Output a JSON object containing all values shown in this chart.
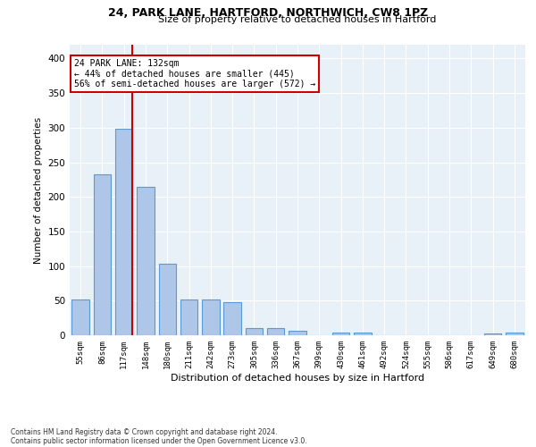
{
  "title1": "24, PARK LANE, HARTFORD, NORTHWICH, CW8 1PZ",
  "title2": "Size of property relative to detached houses in Hartford",
  "xlabel": "Distribution of detached houses by size in Hartford",
  "ylabel": "Number of detached properties",
  "categories": [
    "55sqm",
    "86sqm",
    "117sqm",
    "148sqm",
    "180sqm",
    "211sqm",
    "242sqm",
    "273sqm",
    "305sqm",
    "336sqm",
    "367sqm",
    "399sqm",
    "430sqm",
    "461sqm",
    "492sqm",
    "524sqm",
    "555sqm",
    "586sqm",
    "617sqm",
    "649sqm",
    "680sqm"
  ],
  "values": [
    52,
    232,
    299,
    215,
    103,
    52,
    52,
    48,
    10,
    10,
    6,
    0,
    4,
    4,
    0,
    0,
    0,
    0,
    0,
    3,
    4
  ],
  "bar_color": "#aec6e8",
  "bar_edgecolor": "#5b9bd5",
  "redline_color": "#cc0000",
  "annotation_text": "24 PARK LANE: 132sqm\n← 44% of detached houses are smaller (445)\n56% of semi-detached houses are larger (572) →",
  "annotation_box_color": "#ffffff",
  "annotation_box_edgecolor": "#cc0000",
  "ylim": [
    0,
    420
  ],
  "yticks": [
    0,
    50,
    100,
    150,
    200,
    250,
    300,
    350,
    400
  ],
  "background_color": "#e8f0f8",
  "grid_color": "#ffffff",
  "footer1": "Contains HM Land Registry data © Crown copyright and database right 2024.",
  "footer2": "Contains public sector information licensed under the Open Government Licence v3.0."
}
